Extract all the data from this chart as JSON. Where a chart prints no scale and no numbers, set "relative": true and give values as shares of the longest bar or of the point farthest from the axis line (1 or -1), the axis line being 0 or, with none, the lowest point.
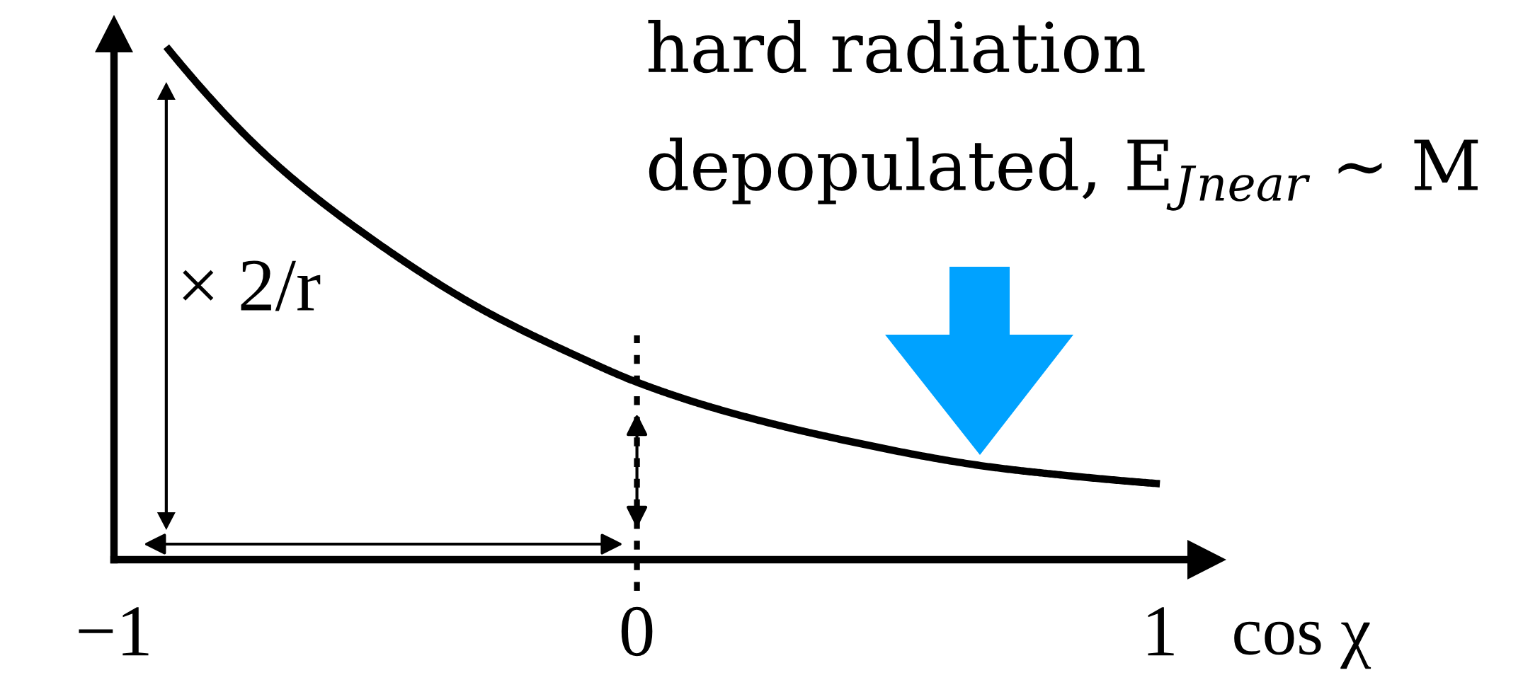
{
  "chart_data": {
    "type": "line",
    "relative": true,
    "xlabel": "cos χ",
    "x": [
      -0.9,
      -0.7,
      -0.5,
      -0.3,
      -0.1,
      0,
      0.153,
      0.373,
      0.667,
      0.813,
      1.0
    ],
    "series": [
      {
        "color": "#000000",
        "values": [
          1,
          0.78,
          0.62,
          0.49,
          0.39,
          0.346,
          0.294,
          0.238,
          0.182,
          0.165,
          0.148
        ]
      }
    ],
    "xlim": [
      -1,
      1.1
    ],
    "xticks": [
      {
        "value": -1,
        "label": "−1"
      },
      0,
      1
    ],
    "tick_labels": "x",
    "ref_lines": [
      {
        "axis": "x",
        "value": 0,
        "color": "#000000",
        "line_style": "dashed"
      }
    ],
    "annotations": [
      "hard radiation\ndepopulated, E$_{J}$$_{near}$ ∼ M",
      "× 2/r"
    ],
    "line_style": "solid"
  }
}
